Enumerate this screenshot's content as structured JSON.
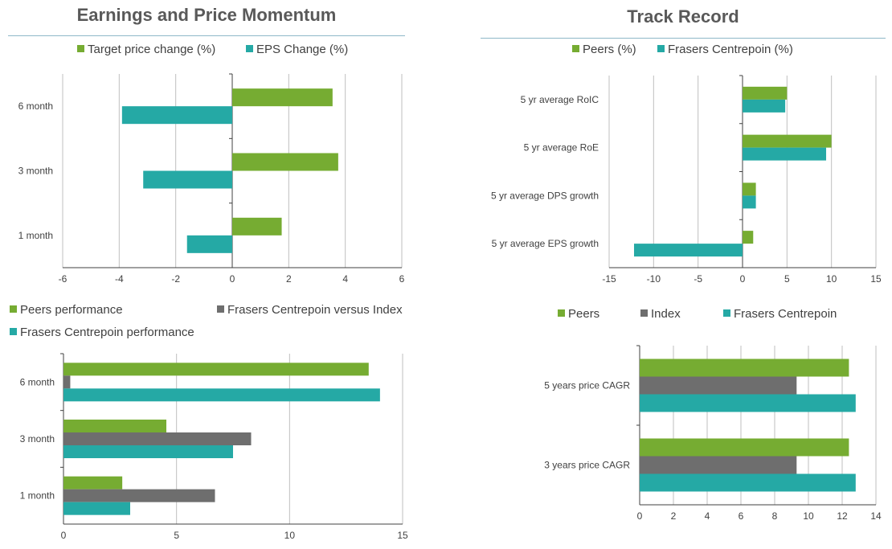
{
  "sections": {
    "left_title": "Earnings and Price Momentum",
    "right_title": "Track Record"
  },
  "colors": {
    "green": "#76ac32",
    "teal": "#25a9a5",
    "gray": "#6e6e6e",
    "grid": "#bfbfbf",
    "axis": "#404040"
  },
  "chart_data": [
    {
      "id": "earnings-momentum",
      "type": "bar",
      "orientation": "horizontal",
      "categories": [
        "6 month",
        "3 month",
        "1 month"
      ],
      "series": [
        {
          "name": "Target price change (%)",
          "color": "#76ac32",
          "values": [
            3.55,
            3.75,
            1.75
          ]
        },
        {
          "name": "EPS Change (%)",
          "color": "#25a9a5",
          "values": [
            -3.9,
            -3.15,
            -1.6
          ]
        }
      ],
      "xlim": [
        -6,
        6
      ],
      "xticks": [
        "-6",
        "-4",
        "-2",
        "0",
        "2",
        "4",
        "6"
      ],
      "legend_position": "top",
      "grid": true
    },
    {
      "id": "track-record",
      "type": "bar",
      "orientation": "horizontal",
      "categories": [
        "5 yr average RoIC",
        "5 yr average RoE",
        "5 yr average DPS growth",
        "5 yr average EPS growth"
      ],
      "series": [
        {
          "name": "Peers (%)",
          "color": "#76ac32",
          "values": [
            5.0,
            10.0,
            1.5,
            1.2
          ]
        },
        {
          "name": "Frasers Centrepoin (%)",
          "color": "#25a9a5",
          "values": [
            4.8,
            9.4,
            1.5,
            -12.2
          ]
        }
      ],
      "xlim": [
        -15,
        15
      ],
      "xticks": [
        "-15",
        "-10",
        "-5",
        "0",
        "5",
        "10",
        "15"
      ],
      "legend_position": "top",
      "grid": true
    },
    {
      "id": "price-performance",
      "type": "bar",
      "orientation": "horizontal",
      "categories": [
        "6 month",
        "3 month",
        "1 month"
      ],
      "series": [
        {
          "name": "Peers performance",
          "color": "#76ac32",
          "values": [
            13.5,
            4.55,
            2.6
          ]
        },
        {
          "name": "Frasers Centrepoin versus Index",
          "color": "#6e6e6e",
          "values": [
            0.3,
            8.3,
            6.7
          ]
        },
        {
          "name": "Frasers Centrepoin performance",
          "color": "#25a9a5",
          "values": [
            14.0,
            7.5,
            2.95
          ]
        }
      ],
      "xlim": [
        0,
        15
      ],
      "xticks": [
        "0",
        "5",
        "10",
        "15"
      ],
      "legend_position": "top",
      "grid": true
    },
    {
      "id": "price-cagr",
      "type": "bar",
      "orientation": "horizontal",
      "categories": [
        "5 years price CAGR",
        "3 years price CAGR"
      ],
      "series": [
        {
          "name": "Peers",
          "color": "#76ac32",
          "values": [
            12.4,
            12.4
          ]
        },
        {
          "name": "Index",
          "color": "#6e6e6e",
          "values": [
            9.3,
            9.3
          ]
        },
        {
          "name": "Frasers Centrepoin",
          "color": "#25a9a5",
          "values": [
            12.8,
            12.8
          ]
        }
      ],
      "xlim": [
        0,
        14
      ],
      "xticks": [
        "0",
        "2",
        "4",
        "6",
        "8",
        "10",
        "12",
        "14"
      ],
      "legend_position": "top",
      "grid": true
    }
  ]
}
